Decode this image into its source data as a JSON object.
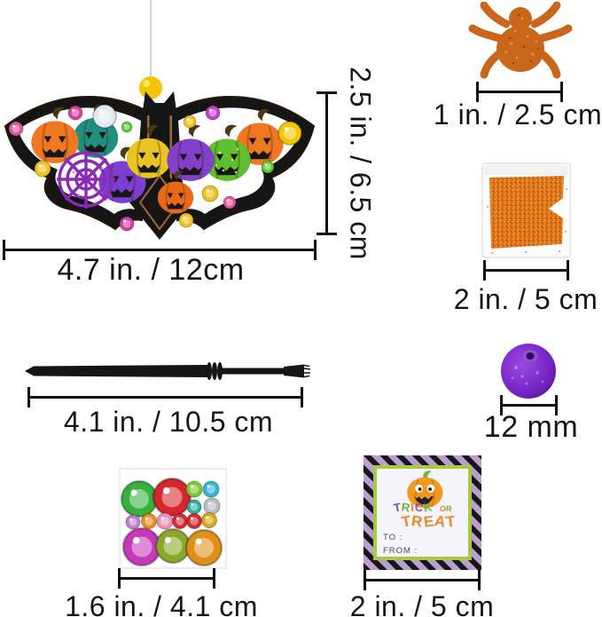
{
  "page": {
    "background": "#ffffff",
    "line_color": "#111111",
    "text_color": "#151515"
  },
  "items": {
    "bat_ornament": {
      "name": "3D wooden bat ornament decorated with pumpkins, spiderweb and gems",
      "width_label": "4.7 in. / 12cm",
      "height_label": "2.5 in. / 6.5 cm",
      "colors": {
        "bat_body": "#151515",
        "wood_edge": "#9c6a33",
        "hanging_bead": "#f5c400",
        "string": "#c9c9c9",
        "pumpkin_orange": "#f07820",
        "pumpkin_teal": "#1f9080",
        "pumpkin_yellow": "#e8c520",
        "pumpkin_purple": "#7a3fd1",
        "pumpkin_green_glitter": "#5fbf2f",
        "spiderweb_purple": "#8a2bb5"
      }
    },
    "spider": {
      "name": "orange glitter spider",
      "size_label": "1 in. / 2.5 cm",
      "color": "#c9661c"
    },
    "glitter_bag": {
      "name": "bag of orange glitter",
      "size_label": "2 in. / 5 cm",
      "glitter_color": "#dd7014"
    },
    "stick_tool": {
      "name": "black craft stick tool",
      "size_label": "4.1 in. / 10.5 cm",
      "color": "#151515"
    },
    "bead": {
      "name": "purple round bead",
      "size_label": "12 mm",
      "color": "#7a28c8"
    },
    "gem_stickers": {
      "name": "rhinestone gem sticker sheet",
      "size_label": "1.6 in. / 4.1 cm"
    },
    "gift_tag": {
      "name": "trick or treat gift tag",
      "size_label": "2 in. / 5 cm",
      "trick_letters": [
        {
          "c": "T",
          "color": "#7b57a8"
        },
        {
          "c": "R",
          "color": "#6fb043"
        },
        {
          "c": "I",
          "color": "#e9832c"
        },
        {
          "c": "C",
          "color": "#a6499f"
        },
        {
          "c": "K",
          "color": "#6fb043"
        }
      ],
      "or_letters": [
        {
          "c": "O",
          "color": "#e9832c"
        },
        {
          "c": "R",
          "color": "#6fb043"
        }
      ],
      "treat_letters": [
        {
          "c": "T",
          "color": "#ec8a2b"
        },
        {
          "c": "R",
          "color": "#ec8a2b"
        },
        {
          "c": "E",
          "color": "#ec8a2b"
        },
        {
          "c": "A",
          "color": "#ec8a2b"
        },
        {
          "c": "T",
          "color": "#ec8a2b"
        }
      ],
      "to_label": "TO :",
      "from_label": "FROM :",
      "border_colors": {
        "stripe_dark": "#17171a",
        "stripe_light": "#bb9dd1",
        "inner_border": "#a9c93f"
      }
    }
  }
}
